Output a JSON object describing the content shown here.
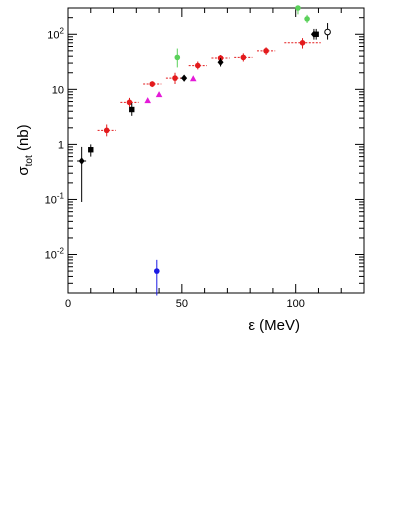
{
  "chart_data": {
    "type": "scatter",
    "title": "",
    "xlabel": {
      "main": "ε (MeV)"
    },
    "ylabel": {
      "main": "σ",
      "sub": "tot",
      "unit": " (nb)"
    },
    "xlim": [
      0,
      130
    ],
    "ylim": [
      0.002,
      300
    ],
    "yscale": "log",
    "grid": false,
    "x_ticks": [
      0,
      50,
      100
    ],
    "y_ticks": [
      {
        "value": 0.01,
        "base": "10",
        "exp": "-2"
      },
      {
        "value": 0.1,
        "base": "10",
        "exp": "-1"
      },
      {
        "value": 1,
        "base": "1",
        "exp": ""
      },
      {
        "value": 10,
        "base": "10",
        "exp": ""
      },
      {
        "value": 100,
        "base": "10",
        "exp": "2"
      }
    ],
    "series": [
      {
        "color": "#e31a1c",
        "marker": "circle",
        "points": [
          {
            "x": 17,
            "y": 1.8,
            "xerr": 4,
            "ylo": 1.4,
            "yhi": 2.3
          },
          {
            "x": 27,
            "y": 5.8,
            "xerr": 4,
            "ylo": 4.8,
            "yhi": 7
          },
          {
            "x": 37,
            "y": 12.5,
            "xerr": 4,
            "ylo": 11,
            "yhi": 14
          },
          {
            "x": 47,
            "y": 16,
            "xerr": 4,
            "ylo": 12.5,
            "yhi": 20
          },
          {
            "x": 57,
            "y": 27,
            "xerr": 4,
            "ylo": 23,
            "yhi": 32
          },
          {
            "x": 67,
            "y": 37,
            "xerr": 4,
            "ylo": 32,
            "yhi": 42
          },
          {
            "x": 77,
            "y": 38,
            "xerr": 4,
            "ylo": 32,
            "yhi": 45
          },
          {
            "x": 87,
            "y": 50,
            "xerr": 4,
            "ylo": 42,
            "yhi": 58
          },
          {
            "x": 103,
            "y": 70,
            "xerr": 8,
            "ylo": 55,
            "yhi": 85
          }
        ]
      },
      {
        "color": "#000000",
        "marker": "square",
        "points": [
          {
            "x": 10,
            "y": 0.8,
            "xerr": 0,
            "ylo": 0.6,
            "yhi": 1.0
          },
          {
            "x": 28,
            "y": 4.3,
            "xerr": 0,
            "ylo": 3.3,
            "yhi": 5.6
          },
          {
            "x": 109,
            "y": 100,
            "xerr": 0,
            "ylo": 80,
            "yhi": 125
          }
        ]
      },
      {
        "color": "#000000",
        "marker": "diamond",
        "points": [
          {
            "x": 6,
            "y": 0.5,
            "xerr": 2,
            "ylo": 0.09,
            "yhi": 0.9
          },
          {
            "x": 51,
            "y": 16,
            "xerr": 1.5,
            "ylo": 14,
            "yhi": 18
          },
          {
            "x": 67,
            "y": 31,
            "xerr": 0,
            "ylo": 26,
            "yhi": 37
          },
          {
            "x": 108,
            "y": 100,
            "xerr": 0,
            "ylo": 80,
            "yhi": 125
          }
        ]
      },
      {
        "color": "#000000",
        "marker": "open-circle",
        "points": [
          {
            "x": 114,
            "y": 110,
            "xerr": 0,
            "ylo": 80,
            "yhi": 160
          }
        ]
      },
      {
        "color": "#e41ad8",
        "marker": "triangle",
        "points": [
          {
            "x": 35,
            "y": 6.2,
            "xerr": 0,
            "ylo": 6.2,
            "yhi": 6.2
          },
          {
            "x": 40,
            "y": 8,
            "xerr": 0,
            "ylo": 8,
            "yhi": 8
          },
          {
            "x": 55,
            "y": 15.5,
            "xerr": 0,
            "ylo": 15.5,
            "yhi": 15.5
          }
        ]
      },
      {
        "color": "#5ad15a",
        "marker": "circle",
        "points": [
          {
            "x": 48,
            "y": 38,
            "xerr": 0,
            "ylo": 25,
            "yhi": 55
          },
          {
            "x": 105,
            "y": 190,
            "xerr": 0,
            "ylo": 160,
            "yhi": 225
          },
          {
            "x": 101,
            "y": 300,
            "xerr": 0,
            "ylo": 230,
            "yhi": 300
          }
        ]
      },
      {
        "color": "#1a1ae3",
        "marker": "circle",
        "points": [
          {
            "x": 39,
            "y": 0.005,
            "xerr": 0,
            "ylo": 0.0018,
            "yhi": 0.008
          }
        ]
      }
    ]
  }
}
